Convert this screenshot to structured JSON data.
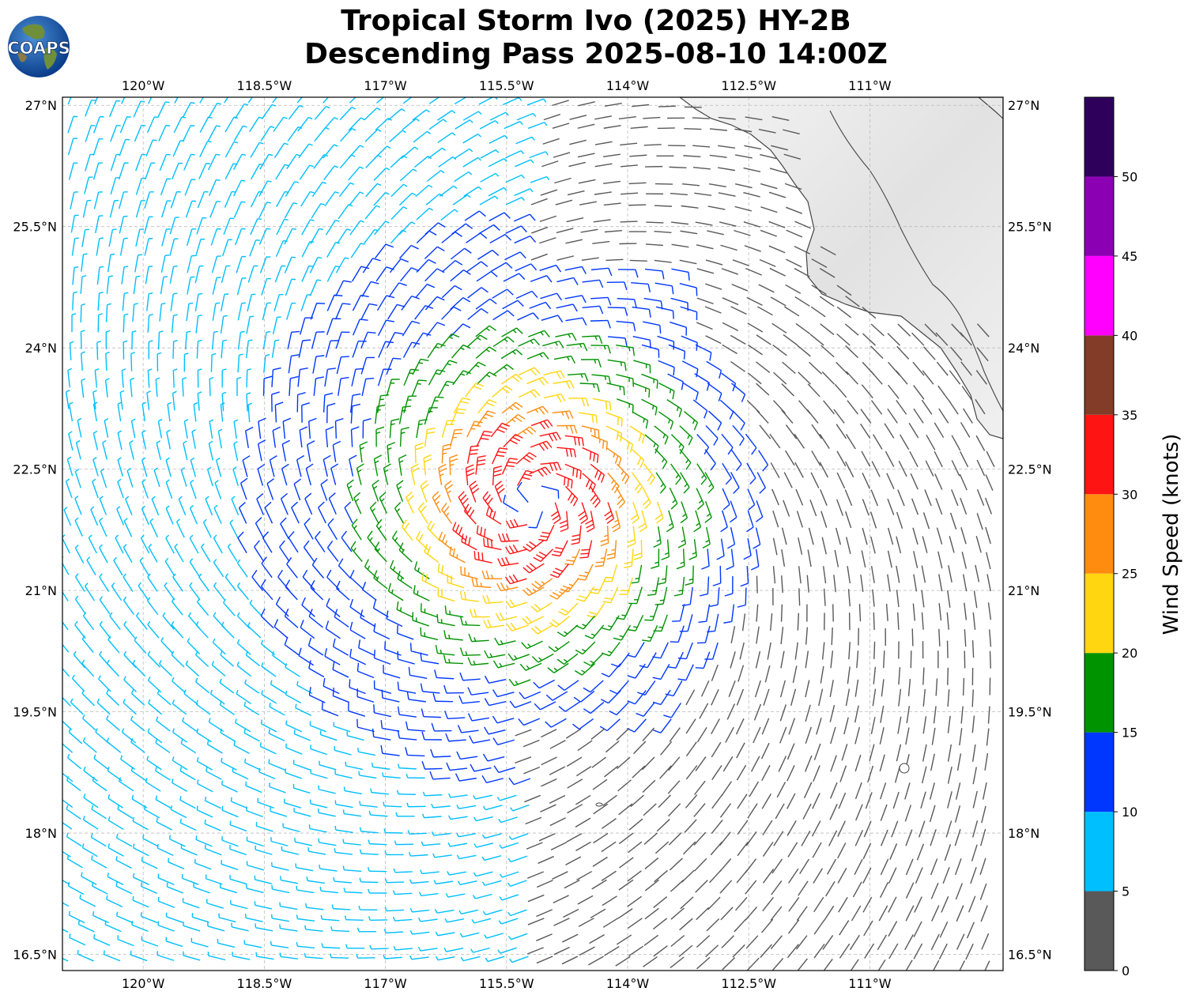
{
  "title": {
    "line1": "Tropical Storm Ivo (2025) HY-2B",
    "line2": "Descending Pass 2025-08-10 14:00Z"
  },
  "logo": {
    "text": "COAPS"
  },
  "map": {
    "lon_range": [
      -121.0,
      -109.35
    ],
    "lat_range": [
      16.3,
      27.1
    ],
    "lon_ticks": [
      {
        "value": -120.0,
        "label": "120°W"
      },
      {
        "value": -118.5,
        "label": "118.5°W"
      },
      {
        "value": -117.0,
        "label": "117°W"
      },
      {
        "value": -115.5,
        "label": "115.5°W"
      },
      {
        "value": -114.0,
        "label": "114°W"
      },
      {
        "value": -112.5,
        "label": "112.5°W"
      },
      {
        "value": -111.0,
        "label": "111°W"
      }
    ],
    "lat_ticks": [
      {
        "value": 27.0,
        "label": "27°N"
      },
      {
        "value": 25.5,
        "label": "25.5°N"
      },
      {
        "value": 24.0,
        "label": "24°N"
      },
      {
        "value": 22.5,
        "label": "22.5°N"
      },
      {
        "value": 21.0,
        "label": "21°N"
      },
      {
        "value": 19.5,
        "label": "19.5°N"
      },
      {
        "value": 18.0,
        "label": "18°N"
      },
      {
        "value": 16.5,
        "label": "16.5°N"
      }
    ],
    "storm_center": {
      "lon": -115.2,
      "lat": 22.1
    },
    "land_color": "#e6e6e6",
    "coast_color": "#444444"
  },
  "colorbar": {
    "label": "Wind Speed (knots)",
    "bins": [
      {
        "from": 0,
        "to": 5,
        "color": "#595959"
      },
      {
        "from": 5,
        "to": 10,
        "color": "#00bfff"
      },
      {
        "from": 10,
        "to": 15,
        "color": "#0037ff"
      },
      {
        "from": 15,
        "to": 20,
        "color": "#009300"
      },
      {
        "from": 20,
        "to": 25,
        "color": "#ffd60f"
      },
      {
        "from": 25,
        "to": 30,
        "color": "#ff8c0f"
      },
      {
        "from": 30,
        "to": 35,
        "color": "#ff1414"
      },
      {
        "from": 35,
        "to": 40,
        "color": "#823c28"
      },
      {
        "from": 40,
        "to": 45,
        "color": "#ff00ff"
      },
      {
        "from": 45,
        "to": 50,
        "color": "#8c00b4"
      },
      {
        "from": 50,
        "to": 55,
        "color": "#2e005c"
      }
    ],
    "tick_labels": [
      "0",
      "5",
      "10",
      "15",
      "20",
      "25",
      "30",
      "35",
      "40",
      "45",
      "50"
    ]
  }
}
